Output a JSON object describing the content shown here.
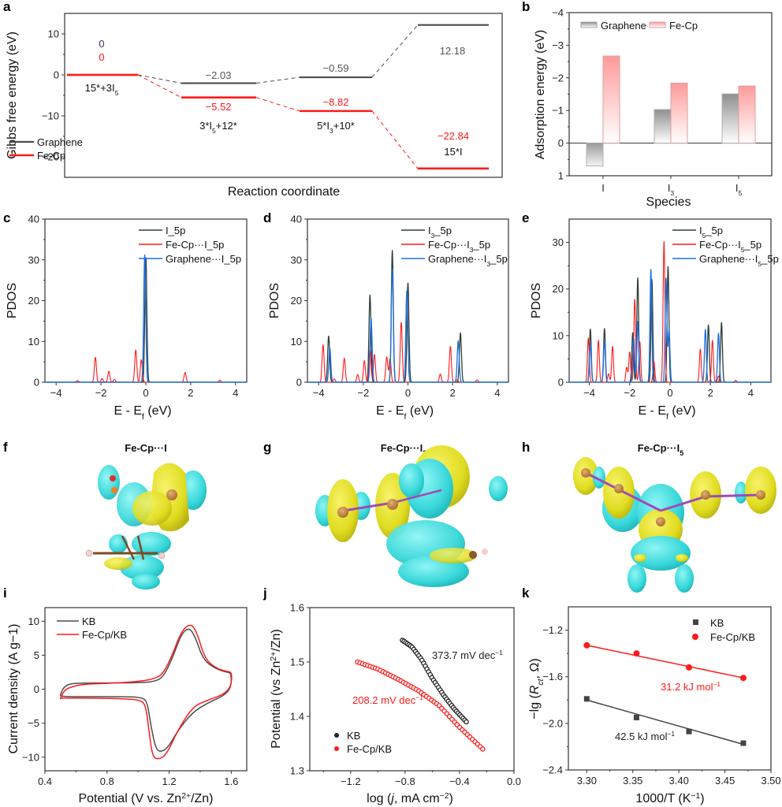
{
  "figure": {
    "panels": [
      "a",
      "b",
      "c",
      "d",
      "e",
      "f",
      "g",
      "h",
      "i",
      "j",
      "k"
    ]
  },
  "colors": {
    "graphene": "#4d4d4d",
    "fecp": "#ff1a1a",
    "blue": "#1f6fe0",
    "dark": "#2f3f3a",
    "purple_zero": "#4b2d5e",
    "iso_yellow": "#e6e22a",
    "iso_cyan": "#3fe0e0"
  },
  "chart_data": [
    {
      "id": "a",
      "type": "line",
      "title": "",
      "xlabel": "Reaction coordinate",
      "ylabel": "Gibbs free energy (eV)",
      "ylim": [
        -25,
        15
      ],
      "yticks": [
        10,
        0,
        -10,
        -20
      ],
      "ytick_labels": [
        "10",
        "0",
        "−10",
        "−20"
      ],
      "steps": [
        "15*+3I5",
        "3*I5+12*",
        "5*I3+10*",
        "15*I"
      ],
      "step_labels": [
        {
          "base": "15*+3I",
          "sub": "5",
          "tail": ""
        },
        {
          "base": "3*I",
          "sub": "5",
          "tail": "+12*"
        },
        {
          "base": "5*I",
          "sub": "3",
          "tail": "+10*"
        },
        {
          "base": "15*I",
          "sub": "",
          "tail": ""
        }
      ],
      "series": [
        {
          "name": "Graphene",
          "values": [
            0,
            -2.03,
            -0.59,
            12.18
          ],
          "labels": [
            "0",
            "−2.03",
            "−0.59",
            "12.18"
          ]
        },
        {
          "name": "Fe-Cp",
          "values": [
            0,
            -5.52,
            -8.82,
            -22.84
          ],
          "labels": [
            "0",
            "−5.52",
            "−8.82",
            "−22.84"
          ]
        }
      ],
      "legend": {
        "position": "bottom-left",
        "entries": [
          "Graphene",
          "Fe-Cp"
        ]
      }
    },
    {
      "id": "b",
      "type": "bar",
      "xlabel": "Species",
      "ylabel": "Adsorption energy (eV)",
      "ylim": [
        1,
        -4
      ],
      "yticks": [
        -4,
        -3,
        -2,
        -1,
        0,
        1
      ],
      "ytick_labels": [
        "−4",
        "−3",
        "−2",
        "−1",
        "0",
        "1"
      ],
      "categories": [
        "I",
        "I3",
        "I5"
      ],
      "category_labels": [
        {
          "base": "I",
          "sub": ""
        },
        {
          "base": "I",
          "sub": "3"
        },
        {
          "base": "I",
          "sub": "5"
        }
      ],
      "series": [
        {
          "name": "Graphene",
          "values": [
            0.7,
            -1.03,
            -1.51
          ]
        },
        {
          "name": "Fe-Cp",
          "values": [
            -2.67,
            -1.84,
            -1.75
          ]
        }
      ],
      "legend": {
        "position": "top-left",
        "entries": [
          "Graphene",
          "Fe-Cp"
        ]
      }
    },
    {
      "id": "c",
      "type": "line",
      "xlabel": "E - Ef (eV)",
      "ylabel": "PDOS",
      "xlim": [
        -4.5,
        4.5
      ],
      "ylim": [
        0,
        40
      ],
      "xticks": [
        -4,
        -2,
        0,
        2,
        4
      ],
      "yticks": [
        0,
        10,
        20,
        30,
        40
      ],
      "legend": {
        "position": "top-right",
        "entries": [
          "I_5p",
          "Fe-Cp···I_5p",
          "Graphene···I_5p"
        ]
      },
      "series": [
        {
          "name": "I_5p",
          "peaks": [
            [
              0.0,
              30.5
            ]
          ]
        },
        {
          "name": "Fe-Cp···I_5p",
          "peaks": [
            [
              -3.05,
              0.4
            ],
            [
              -2.25,
              6.1
            ],
            [
              -1.95,
              0.9
            ],
            [
              -1.65,
              2.7
            ],
            [
              -1.4,
              0.7
            ],
            [
              -0.45,
              7.9
            ],
            [
              -0.2,
              5.5
            ],
            [
              1.75,
              2.4
            ],
            [
              3.3,
              0.5
            ]
          ]
        },
        {
          "name": "Graphene···I_5p",
          "peaks": [
            [
              -0.05,
              31.2
            ]
          ]
        }
      ]
    },
    {
      "id": "d",
      "type": "line",
      "xlabel": "E - Ef (eV)",
      "ylabel": "PDOS",
      "xlim": [
        -4.5,
        4.5
      ],
      "ylim": [
        0,
        40
      ],
      "xticks": [
        -4,
        -2,
        0,
        2,
        4
      ],
      "yticks": [
        0,
        10,
        20,
        30,
        40
      ],
      "legend": {
        "position": "top-right",
        "entries": [
          "I3_5p",
          "Fe-Cp···I3_5p",
          "Graphene···I3_5p"
        ]
      },
      "series": [
        {
          "name": "I3_5p",
          "peaks": [
            [
              -3.55,
              11.3
            ],
            [
              -1.7,
              21.4
            ],
            [
              -0.7,
              32.3
            ],
            [
              0.0,
              24.3
            ],
            [
              2.35,
              12.1
            ]
          ]
        },
        {
          "name": "Fe-Cp···I3_5p",
          "peaks": [
            [
              -3.8,
              9.2
            ],
            [
              -3.3,
              0.8
            ],
            [
              -2.85,
              5.9
            ],
            [
              -2.25,
              1.9
            ],
            [
              -1.95,
              5.3
            ],
            [
              -1.7,
              8.0
            ],
            [
              -1.5,
              6.8
            ],
            [
              -0.95,
              6.2
            ],
            [
              -0.8,
              5.7
            ],
            [
              -0.3,
              14.7
            ],
            [
              1.45,
              2.0
            ],
            [
              1.9,
              8.8
            ],
            [
              2.2,
              0.6
            ],
            [
              3.1,
              0.6
            ]
          ]
        },
        {
          "name": "Graphene···I3_5p",
          "peaks": [
            [
              -3.5,
              8.4
            ],
            [
              -1.65,
              15.8
            ],
            [
              -0.7,
              27.8
            ],
            [
              -0.05,
              22.4
            ],
            [
              2.25,
              10.1
            ]
          ]
        }
      ]
    },
    {
      "id": "e",
      "type": "line",
      "xlabel": "E - Ef (eV)",
      "ylabel": "PDOS",
      "xlim": [
        -5,
        5
      ],
      "ylim": [
        0,
        35
      ],
      "xticks": [
        -4,
        -2,
        0,
        2,
        4
      ],
      "yticks": [
        0,
        10,
        20,
        30
      ],
      "legend": {
        "position": "top-right",
        "entries": [
          "I5_5p",
          "Fe-Cp···I5_5p",
          "Graphene···I5_5p"
        ]
      },
      "series": [
        {
          "name": "I5_5p",
          "peaks": [
            [
              -3.95,
              11.4
            ],
            [
              -3.25,
              11.5
            ],
            [
              -1.85,
              10.6
            ],
            [
              -1.6,
              22.4
            ],
            [
              -0.9,
              22.0
            ],
            [
              -0.1,
              24.8
            ],
            [
              1.9,
              12.3
            ],
            [
              2.55,
              12.8
            ]
          ]
        },
        {
          "name": "Fe-Cp···I5_5p",
          "peaks": [
            [
              -4.05,
              9.5
            ],
            [
              -3.55,
              9.0
            ],
            [
              -3.05,
              1.8
            ],
            [
              -2.85,
              7.7
            ],
            [
              -2.15,
              3.2
            ],
            [
              -2.0,
              6.5
            ],
            [
              -1.75,
              17.8
            ],
            [
              -1.5,
              8.7
            ],
            [
              -0.8,
              4.5
            ],
            [
              -0.3,
              30.2
            ],
            [
              1.5,
              7.1
            ],
            [
              2.1,
              9.0
            ],
            [
              2.4,
              1.3
            ],
            [
              3.25,
              0.4
            ]
          ]
        },
        {
          "name": "Graphene···I5_5p",
          "peaks": [
            [
              -3.95,
              8.3
            ],
            [
              -3.25,
              8.8
            ],
            [
              -1.8,
              9.5
            ],
            [
              -1.6,
              13.0
            ],
            [
              -0.95,
              24.2
            ],
            [
              -0.2,
              22.3
            ],
            [
              -0.05,
              11.3
            ],
            [
              1.75,
              11.3
            ],
            [
              2.4,
              10.5
            ]
          ]
        }
      ]
    },
    {
      "id": "i",
      "type": "line",
      "xlabel": "Potential (V vs. Zn2+/Zn)",
      "ylabel": "Current density (A g−1)",
      "xlim": [
        0.4,
        1.7
      ],
      "ylim": [
        -12,
        12
      ],
      "xticks": [
        0.4,
        0.8,
        1.2,
        1.6
      ],
      "xtick_labels": [
        "0.4",
        "0.8",
        "1.2",
        "1.6"
      ],
      "yticks": [
        10,
        5,
        0,
        -5,
        -10
      ],
      "ytick_labels": [
        "10",
        "5",
        "0",
        "−5",
        "−10"
      ],
      "legend": {
        "position": "top-left",
        "entries": [
          "KB",
          "Fe-Cp/KB"
        ]
      },
      "series": [
        {
          "name": "KB",
          "x": [
            0.5,
            0.52,
            0.56,
            0.62,
            0.8,
            1.0,
            1.1,
            1.16,
            1.22,
            1.28,
            1.33,
            1.37,
            1.42,
            1.5,
            1.57,
            1.6,
            1.6,
            1.55,
            1.45,
            1.35,
            1.25,
            1.19,
            1.14,
            1.11,
            1.08,
            1.06,
            1.03,
            0.9,
            0.7,
            0.5,
            0.5
          ],
          "y": [
            -0.8,
            0.3,
            0.8,
            0.9,
            0.9,
            0.95,
            1.1,
            1.7,
            4.5,
            8.2,
            9.1,
            7.6,
            4.3,
            3.0,
            2.5,
            2.4,
            0.2,
            -1.0,
            -2.0,
            -3.4,
            -6.3,
            -8.7,
            -9.3,
            -8.5,
            -5.0,
            -2.0,
            -1.2,
            -1.1,
            -1.1,
            -1.1,
            -0.8
          ]
        },
        {
          "name": "Fe-Cp/KB",
          "x": [
            0.5,
            0.52,
            0.56,
            0.65,
            0.8,
            1.0,
            1.1,
            1.16,
            1.22,
            1.28,
            1.34,
            1.38,
            1.43,
            1.5,
            1.57,
            1.605,
            1.6,
            1.55,
            1.45,
            1.35,
            1.25,
            1.18,
            1.12,
            1.09,
            1.07,
            1.05,
            1.02,
            0.9,
            0.7,
            0.5,
            0.5
          ],
          "y": [
            -1.4,
            -0.3,
            0.3,
            0.75,
            0.85,
            1.1,
            1.5,
            2.2,
            5.0,
            8.6,
            9.7,
            8.3,
            4.5,
            3.1,
            2.6,
            2.5,
            0.4,
            -0.8,
            -1.6,
            -2.6,
            -6.3,
            -9.8,
            -10.4,
            -9.6,
            -6.0,
            -2.5,
            -1.6,
            -1.4,
            -1.3,
            -1.3,
            -1.4
          ]
        }
      ]
    },
    {
      "id": "j",
      "type": "scatter",
      "xlabel": "log (j, mA cm−2)",
      "ylabel": "Potential (vs Zn2+/Zn)",
      "xlim": [
        -1.5,
        0.0
      ],
      "ylim": [
        1.3,
        1.6
      ],
      "xticks": [
        -1.2,
        -0.8,
        -0.4,
        0.0
      ],
      "xtick_labels": [
        "−1.2",
        "−0.8",
        "−0.4",
        "0.0"
      ],
      "yticks": [
        1.3,
        1.4,
        1.5,
        1.6
      ],
      "ytick_labels": [
        "1.3",
        "1.4",
        "1.5",
        "1.6"
      ],
      "legend": {
        "position": "bottom-left",
        "entries": [
          "KB",
          "Fe-Cp/KB"
        ]
      },
      "annotations": [
        {
          "series": "KB",
          "text": "373.7 mV dec",
          "sup": "−1"
        },
        {
          "series": "Fe-Cp/KB",
          "text": "208.2 mV dec",
          "sup": "−1"
        }
      ],
      "series": [
        {
          "name": "KB",
          "x_range": [
            -0.82,
            -0.35
          ],
          "curve": [
            [
              -0.82,
              1.54
            ],
            [
              -0.75,
              1.528
            ],
            [
              -0.68,
              1.505
            ],
            [
              -0.6,
              1.47
            ],
            [
              -0.52,
              1.44
            ],
            [
              -0.44,
              1.414
            ],
            [
              -0.35,
              1.39
            ]
          ],
          "n_points": 40
        },
        {
          "name": "Fe-Cp/KB",
          "x_range": [
            -1.15,
            -0.23
          ],
          "curve": [
            [
              -1.15,
              1.5
            ],
            [
              -1.0,
              1.487
            ],
            [
              -0.85,
              1.468
            ],
            [
              -0.7,
              1.447
            ],
            [
              -0.55,
              1.42
            ],
            [
              -0.4,
              1.38
            ],
            [
              -0.23,
              1.34
            ]
          ],
          "n_points": 50
        }
      ]
    },
    {
      "id": "k",
      "type": "scatter",
      "xlabel": "1000/T (K−1)",
      "ylabel": "−lg (Rct, Ω)",
      "xlim": [
        3.28,
        3.5
      ],
      "ylim": [
        -2.4,
        -1.0
      ],
      "xticks": [
        3.3,
        3.35,
        3.4,
        3.45,
        3.5
      ],
      "xtick_labels": [
        "3.30",
        "3.35",
        "3.40",
        "3.45",
        "3.50"
      ],
      "yticks": [
        -1.2,
        -1.6,
        -2.0,
        -2.4
      ],
      "ytick_labels": [
        "−1.2",
        "−1.6",
        "−2.0",
        "−2.4"
      ],
      "legend": {
        "position": "top-right",
        "entries": [
          "KB",
          "Fe-Cp/KB"
        ]
      },
      "annotations": [
        {
          "series": "Fe-Cp/KB",
          "text": "31.2 kJ mol",
          "sup": "−1"
        },
        {
          "series": "KB",
          "text": "42.5 kJ mol",
          "sup": "−1"
        }
      ],
      "series": [
        {
          "name": "KB",
          "x": [
            3.3,
            3.354,
            3.411,
            3.47
          ],
          "y": [
            -1.79,
            -1.95,
            -2.07,
            -2.17
          ],
          "fit": [
            [
              3.3,
              -1.8
            ],
            [
              3.47,
              -2.18
            ]
          ]
        },
        {
          "name": "Fe-Cp/KB",
          "x": [
            3.3,
            3.354,
            3.411,
            3.47
          ],
          "y": [
            -1.33,
            -1.4,
            -1.52,
            -1.61
          ],
          "fit": [
            [
              3.3,
              -1.33
            ],
            [
              3.47,
              -1.61
            ]
          ]
        }
      ]
    }
  ],
  "isosurfaces": [
    {
      "id": "f",
      "title_base": "Fe-Cp···I",
      "title_sub": ""
    },
    {
      "id": "g",
      "title_base": "Fe-Cp···I",
      "title_sub": "3"
    },
    {
      "id": "h",
      "title_base": "Fe-Cp···I",
      "title_sub": "5"
    }
  ]
}
